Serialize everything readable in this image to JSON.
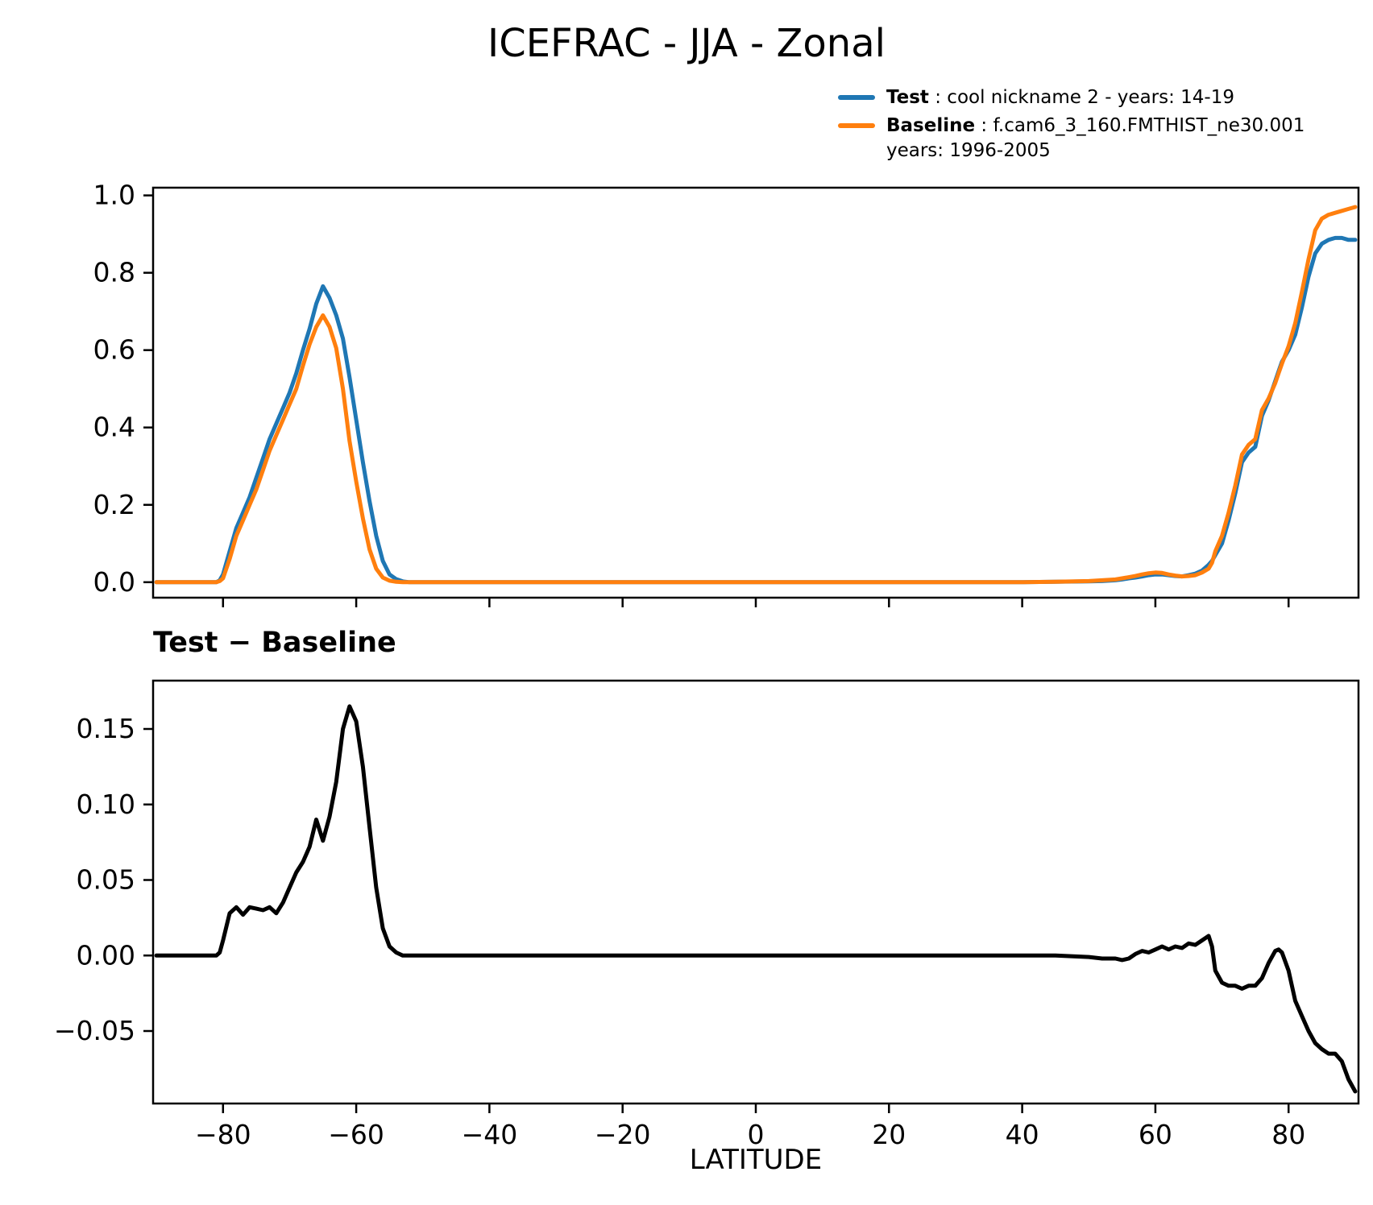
{
  "title": "ICEFRAC - JJA - Zonal",
  "diff_title": "Test − Baseline",
  "xlabel": "LATITUDE",
  "legend": {
    "test": {
      "name": "Test",
      "desc": " : cool nickname 2 - years: 14-19",
      "color": "#1f77b4"
    },
    "baseline": {
      "name": "Baseline",
      "desc": " : f.cam6_3_160.FMTHIST_ne30.001 years: 1996-2005",
      "color": "#ff7f0e"
    }
  },
  "chart_data": [
    {
      "type": "line",
      "title": "ICEFRAC - JJA - Zonal",
      "xlabel": "",
      "ylabel": "",
      "grid": false,
      "legend_position": "above upper right",
      "xlim": [
        -90.5,
        90.5
      ],
      "ylim": [
        -0.04,
        1.02
      ],
      "xticks": [
        -80,
        -60,
        -40,
        -20,
        0,
        20,
        40,
        60,
        80
      ],
      "yticks": [
        0.0,
        0.2,
        0.4,
        0.6,
        0.8,
        1.0
      ],
      "x": [
        -90,
        -86,
        -82,
        -81,
        -80.5,
        -80,
        -79,
        -78,
        -77,
        -76,
        -75,
        -74,
        -73,
        -72,
        -71,
        -70,
        -69,
        -68,
        -67,
        -66,
        -65,
        -64,
        -63,
        -62,
        -61,
        -60,
        -59,
        -58,
        -57,
        -56,
        -55,
        -54,
        -53,
        -52,
        -48,
        -40,
        -30,
        -20,
        -10,
        0,
        10,
        20,
        30,
        40,
        45,
        50,
        52,
        54,
        55,
        56,
        57,
        58,
        59,
        60,
        61,
        62,
        63,
        64,
        65,
        66,
        67,
        68,
        68.5,
        69,
        70,
        71,
        72,
        73,
        74,
        75,
        76,
        77,
        78,
        78.5,
        79,
        80,
        81,
        82,
        83,
        84,
        85,
        86,
        87,
        88,
        89,
        90
      ],
      "series": [
        {
          "name": "Test : cool nickname 2 - years: 14-19",
          "color": "#1f77b4",
          "values": [
            0,
            0,
            0,
            0,
            0.005,
            0.02,
            0.08,
            0.14,
            0.18,
            0.22,
            0.27,
            0.32,
            0.37,
            0.41,
            0.45,
            0.49,
            0.54,
            0.6,
            0.655,
            0.72,
            0.765,
            0.735,
            0.69,
            0.63,
            0.53,
            0.42,
            0.31,
            0.21,
            0.12,
            0.055,
            0.02,
            0.008,
            0.002,
            0,
            0,
            0,
            0,
            0,
            0,
            0,
            0,
            0,
            0,
            0,
            0.001,
            0.002,
            0.003,
            0.005,
            0.007,
            0.01,
            0.012,
            0.015,
            0.018,
            0.02,
            0.02,
            0.018,
            0.016,
            0.015,
            0.018,
            0.022,
            0.03,
            0.045,
            0.055,
            0.07,
            0.1,
            0.16,
            0.23,
            0.31,
            0.335,
            0.35,
            0.43,
            0.47,
            0.52,
            0.545,
            0.57,
            0.6,
            0.64,
            0.71,
            0.79,
            0.85,
            0.875,
            0.885,
            0.89,
            0.89,
            0.885,
            0.885
          ]
        },
        {
          "name": "Baseline : f.cam6_3_160.FMTHIST_ne30.001 years: 1996-2005",
          "color": "#ff7f0e",
          "values": [
            0,
            0,
            0,
            0,
            0.003,
            0.01,
            0.06,
            0.12,
            0.16,
            0.2,
            0.24,
            0.29,
            0.34,
            0.38,
            0.42,
            0.46,
            0.5,
            0.56,
            0.615,
            0.66,
            0.69,
            0.66,
            0.605,
            0.5,
            0.365,
            0.26,
            0.165,
            0.085,
            0.035,
            0.012,
            0.004,
            0.001,
            0,
            0,
            0,
            0,
            0,
            0,
            0,
            0,
            0,
            0,
            0,
            0,
            0.001,
            0.003,
            0.005,
            0.007,
            0.01,
            0.013,
            0.016,
            0.02,
            0.023,
            0.025,
            0.024,
            0.02,
            0.017,
            0.015,
            0.016,
            0.018,
            0.025,
            0.035,
            0.05,
            0.08,
            0.12,
            0.18,
            0.25,
            0.33,
            0.355,
            0.37,
            0.445,
            0.475,
            0.515,
            0.54,
            0.565,
            0.61,
            0.67,
            0.75,
            0.835,
            0.91,
            0.94,
            0.95,
            0.955,
            0.96,
            0.965,
            0.97
          ]
        }
      ]
    },
    {
      "type": "line",
      "title": "Test − Baseline",
      "xlabel": "LATITUDE",
      "ylabel": "",
      "grid": false,
      "xlim": [
        -90.5,
        90.5
      ],
      "ylim": [
        -0.098,
        0.182
      ],
      "xticks": [
        -80,
        -60,
        -40,
        -20,
        0,
        20,
        40,
        60,
        80
      ],
      "yticks": [
        -0.05,
        0.0,
        0.05,
        0.1,
        0.15
      ],
      "x": [
        -90,
        -86,
        -82,
        -81,
        -80.5,
        -80,
        -79,
        -78,
        -77,
        -76,
        -75,
        -74,
        -73,
        -72,
        -71,
        -70,
        -69,
        -68,
        -67,
        -66,
        -65,
        -64,
        -63,
        -62,
        -61,
        -60,
        -59,
        -58,
        -57,
        -56,
        -55,
        -54,
        -53,
        -52,
        -48,
        -40,
        -30,
        -20,
        -10,
        0,
        10,
        20,
        30,
        40,
        45,
        50,
        52,
        54,
        55,
        56,
        57,
        58,
        59,
        60,
        61,
        62,
        63,
        64,
        65,
        66,
        67,
        68,
        68.5,
        69,
        70,
        71,
        72,
        73,
        74,
        75,
        76,
        77,
        78,
        78.5,
        79,
        80,
        81,
        82,
        83,
        84,
        85,
        86,
        87,
        88,
        89,
        90
      ],
      "series": [
        {
          "name": "Test - Baseline",
          "color": "#000000",
          "values": [
            0,
            0,
            0,
            0,
            0.002,
            0.01,
            0.028,
            0.032,
            0.027,
            0.032,
            0.031,
            0.03,
            0.032,
            0.028,
            0.035,
            0.045,
            0.055,
            0.062,
            0.072,
            0.09,
            0.076,
            0.092,
            0.115,
            0.15,
            0.165,
            0.155,
            0.125,
            0.085,
            0.045,
            0.018,
            0.006,
            0.002,
            0,
            0,
            0,
            0,
            0,
            0,
            0,
            0,
            0,
            0,
            0,
            0,
            0,
            -0.001,
            -0.002,
            -0.002,
            -0.003,
            -0.002,
            0.001,
            0.003,
            0.002,
            0.004,
            0.006,
            0.004,
            0.006,
            0.005,
            0.008,
            0.007,
            0.01,
            0.013,
            0.006,
            -0.01,
            -0.018,
            -0.02,
            -0.02,
            -0.022,
            -0.02,
            -0.02,
            -0.015,
            -0.005,
            0.003,
            0.004,
            0.002,
            -0.01,
            -0.03,
            -0.04,
            -0.05,
            -0.058,
            -0.062,
            -0.065,
            -0.065,
            -0.07,
            -0.082,
            -0.09
          ]
        }
      ]
    }
  ]
}
